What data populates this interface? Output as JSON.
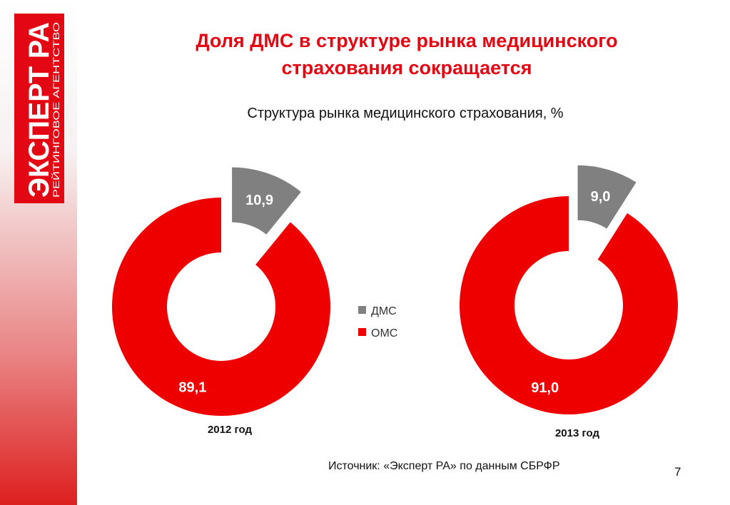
{
  "logo": {
    "brand": "ЭКСПЕРТ РА",
    "tagline": "РЕЙТИНГОВОЕ АГЕНТСТВО"
  },
  "header": {
    "title_line1": "Доля ДМС в структуре рынка медицинского",
    "title_line2": "страхования сокращается"
  },
  "colors": {
    "accent": "#e30613",
    "oms": "#ee0000",
    "dms": "#808080"
  },
  "chart_data": {
    "type": "pie",
    "title": "Структура рынка медицинского страхования, %",
    "legend": {
      "position": "center",
      "entries": [
        "ДМС",
        "ОМС"
      ]
    },
    "categories": [
      "ДМС",
      "ОМС"
    ],
    "charts": [
      {
        "label": "2012 год",
        "values": [
          10.9,
          89.1
        ],
        "value_labels": [
          "10,9",
          "89,1"
        ]
      },
      {
        "label": "2013 год",
        "values": [
          9.0,
          91.0
        ],
        "value_labels": [
          "9,0",
          "91,0"
        ]
      }
    ]
  },
  "footer": {
    "source": "Источник: «Эксперт РА» по данным СБРФР",
    "page": "7"
  }
}
